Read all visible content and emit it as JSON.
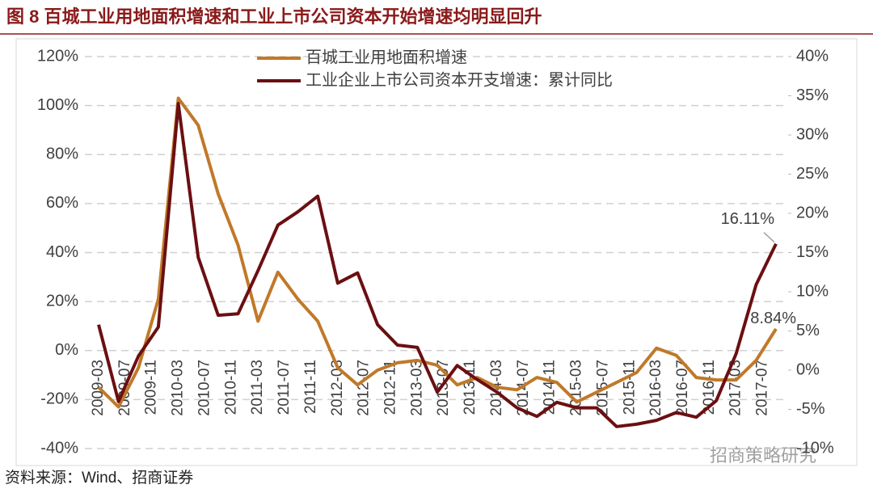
{
  "chart_data": {
    "type": "line",
    "title": "图 8  百城工业用地面积增速和工业上市公司资本开始增速均明显回升",
    "source": "资料来源：Wind、招商证券",
    "watermark": "招商策略研究",
    "x": [
      "2009-03",
      "2009-06",
      "2009-09",
      "2009-12",
      "2010-03",
      "2010-06",
      "2010-09",
      "2010-12",
      "2011-03",
      "2011-06",
      "2011-09",
      "2011-12",
      "2012-03",
      "2012-06",
      "2012-09",
      "2012-12",
      "2013-03",
      "2013-06",
      "2013-09",
      "2013-12",
      "2014-03",
      "2014-06",
      "2014-09",
      "2014-12",
      "2015-03",
      "2015-06",
      "2015-09",
      "2015-12",
      "2016-03",
      "2016-06",
      "2016-09",
      "2016-12",
      "2017-03",
      "2017-06",
      "2017-09"
    ],
    "xticks": [
      "2009-03",
      "2009-07",
      "2009-11",
      "2010-03",
      "2010-07",
      "2010-11",
      "2011-03",
      "2011-07",
      "2011-11",
      "2012-03",
      "2012-07",
      "2012-11",
      "2013-03",
      "2013-07",
      "2013-11",
      "2014-03",
      "2014-07",
      "2014-11",
      "2015-03",
      "2015-07",
      "2015-11",
      "2016-03",
      "2016-07",
      "2016-11",
      "2017-03",
      "2017-07"
    ],
    "series": [
      {
        "name": "百城工业用地面积增速",
        "color": "#c0792a",
        "axis": "y",
        "values": [
          -15,
          -23,
          -7,
          21,
          103,
          92,
          64,
          43,
          12,
          32,
          21,
          12,
          -7,
          -14,
          -8,
          -5,
          -4,
          -6,
          -14,
          -11,
          -15,
          -16,
          -11,
          -13,
          -21,
          -17,
          -13,
          -9,
          1,
          -2,
          -11,
          -12,
          -12,
          -4,
          8.84
        ],
        "value_labels": [
          null,
          null,
          null,
          null,
          null,
          null,
          null,
          null,
          null,
          null,
          null,
          null,
          null,
          null,
          null,
          null,
          null,
          null,
          null,
          null,
          null,
          null,
          null,
          null,
          null,
          null,
          null,
          null,
          null,
          null,
          null,
          null,
          null,
          null,
          "8.84%"
        ]
      },
      {
        "name": "工业企业上市公司资本开支增速：累计同比",
        "color": "#6b0f12",
        "axis": "y2",
        "values": [
          5.8,
          -4,
          1.8,
          5.5,
          34,
          14.4,
          7,
          7.2,
          12.7,
          18.5,
          20.2,
          22.2,
          11.1,
          12.4,
          5.8,
          3.2,
          2.9,
          -2.8,
          0.6,
          -1.2,
          -2.8,
          -4.8,
          -5.9,
          -4.1,
          -4.8,
          -4.8,
          -7.2,
          -6.9,
          -6.4,
          -5.4,
          -6,
          -3.9,
          2.1,
          10.9,
          16.11
        ],
        "value_labels": [
          null,
          null,
          null,
          null,
          null,
          null,
          null,
          null,
          null,
          null,
          null,
          null,
          null,
          null,
          null,
          null,
          null,
          null,
          null,
          null,
          null,
          null,
          null,
          null,
          null,
          null,
          null,
          null,
          null,
          null,
          null,
          null,
          null,
          null,
          "16.11%"
        ]
      }
    ],
    "ylim": [
      -40,
      120
    ],
    "yticks": [
      {
        "value": -40,
        "label": "-40%"
      },
      {
        "value": -20,
        "label": "-20%"
      },
      {
        "value": 0,
        "label": "0%"
      },
      {
        "value": 20,
        "label": "20%"
      },
      {
        "value": 40,
        "label": "40%"
      },
      {
        "value": 60,
        "label": "60%"
      },
      {
        "value": 80,
        "label": "80%"
      },
      {
        "value": 100,
        "label": "100%"
      },
      {
        "value": 120,
        "label": "120%"
      }
    ],
    "y2lim": [
      -10,
      40
    ],
    "y2ticks": [
      {
        "value": -10,
        "label": "-10%"
      },
      {
        "value": -5,
        "label": "-5%"
      },
      {
        "value": 0,
        "label": "0%"
      },
      {
        "value": 5,
        "label": "5%"
      },
      {
        "value": 10,
        "label": "10%"
      },
      {
        "value": 15,
        "label": "15%"
      },
      {
        "value": 20,
        "label": "20%"
      },
      {
        "value": 25,
        "label": "25%"
      },
      {
        "value": 30,
        "label": "30%"
      },
      {
        "value": 35,
        "label": "35%"
      },
      {
        "value": 40,
        "label": "40%"
      }
    ],
    "grid": true,
    "legend": "top"
  }
}
